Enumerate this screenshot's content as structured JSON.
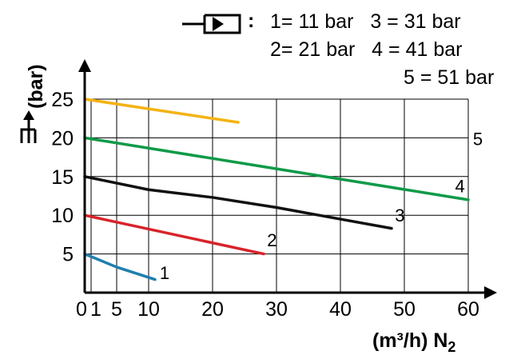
{
  "legend": {
    "colon": ":",
    "row1": "1= 11 bar   3 = 31 bar",
    "row2": "2= 21 bar   4 = 41 bar",
    "row3": "5 = 51 bar"
  },
  "chart_data": {
    "type": "line",
    "title": "",
    "xlabel": "(m³/h) N₂",
    "xlabel_main": "(m³/h) N",
    "xlabel_sub": "2",
    "ylabel": "(bar)",
    "xlim": [
      0,
      60
    ],
    "ylim": [
      0,
      27
    ],
    "grid": true,
    "xticks": [
      0,
      1,
      5,
      10,
      20,
      30,
      40,
      50,
      60
    ],
    "x_tick_labels": [
      "0",
      "1",
      "5",
      "10",
      "20",
      "30",
      "40",
      "50",
      "60"
    ],
    "yticks": [
      5,
      10,
      15,
      20,
      25
    ],
    "y_tick_labels": [
      "5",
      "10",
      "15",
      "20",
      "25"
    ],
    "series": [
      {
        "name": "1",
        "color": "#1f7fae",
        "x": [
          0,
          5,
          11
        ],
        "y": [
          5,
          3.3,
          1.7
        ]
      },
      {
        "name": "2",
        "color": "#d8232a",
        "x": [
          0,
          28
        ],
        "y": [
          10,
          5
        ]
      },
      {
        "name": "3",
        "color": "#111111",
        "x": [
          0,
          10,
          20,
          30,
          40,
          48
        ],
        "y": [
          15,
          13.3,
          12.3,
          11,
          9.5,
          8.3
        ]
      },
      {
        "name": "4",
        "color": "#0f9a48",
        "x": [
          0,
          60
        ],
        "y": [
          20,
          12
        ]
      },
      {
        "name": "5",
        "color": "#f4b313",
        "x": [
          0,
          24
        ],
        "y": [
          25,
          22
        ]
      }
    ],
    "series_labels": [
      {
        "text": "1",
        "x": 12.5,
        "y": 2.7
      },
      {
        "text": "2",
        "x": 29.3,
        "y": 6.9
      },
      {
        "text": "3",
        "x": 49.3,
        "y": 10.1
      },
      {
        "text": "4",
        "x": 58.7,
        "y": 13.9
      },
      {
        "text": "5",
        "x": 61.5,
        "y": 20
      }
    ]
  }
}
